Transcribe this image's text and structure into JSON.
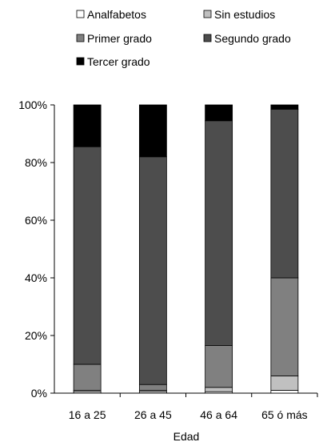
{
  "chart_data": {
    "type": "bar",
    "stacked": true,
    "percent": true,
    "categories": [
      "16 a 25",
      "26 a 45",
      "46 a 64",
      "65 ó más"
    ],
    "xlabel": "Edad",
    "ylabel": "",
    "ylim": [
      0,
      100
    ],
    "yticks": [
      "0%",
      "20%",
      "40%",
      "60%",
      "80%",
      "100%"
    ],
    "grid": false,
    "legend_position": "top",
    "series": [
      {
        "name": "Analfabetos",
        "color": "#ffffff",
        "values": [
          0.5,
          0.5,
          0.5,
          1.0
        ]
      },
      {
        "name": "Sin estudios",
        "color": "#c0c0c0",
        "values": [
          0.5,
          0.5,
          1.5,
          5.0
        ]
      },
      {
        "name": "Primer grado",
        "color": "#808080",
        "values": [
          9.0,
          2.0,
          14.5,
          34.0
        ]
      },
      {
        "name": "Segundo grado",
        "color": "#4d4d4d",
        "values": [
          75.5,
          79.0,
          78.0,
          58.5
        ]
      },
      {
        "name": "Tercer grado",
        "color": "#000000",
        "values": [
          14.5,
          18.0,
          5.5,
          1.5
        ]
      }
    ]
  }
}
